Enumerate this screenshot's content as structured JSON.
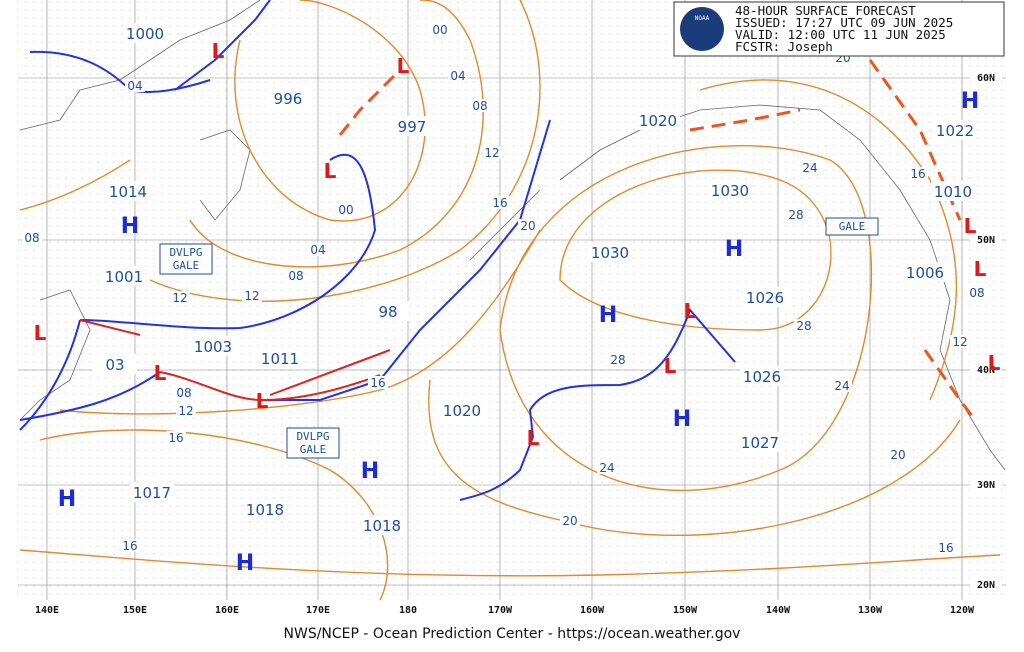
{
  "header": {
    "logo": "NOAA",
    "lines": [
      "48-HOUR SURFACE FORECAST",
      "ISSUED: 17:27 UTC 09 JUN 2025",
      "VALID:  12:00 UTC 11 JUN 2025",
      "FCSTR:  Joseph"
    ]
  },
  "symbols": {
    "high": "H",
    "low": "L"
  },
  "pressure_labels": [
    "1000",
    "996",
    "997",
    "1014",
    "1001",
    "1003",
    "1011",
    "03",
    "98",
    "1020",
    "1030",
    "1030",
    "1026",
    "1026",
    "1022",
    "1010",
    "1006",
    "1020",
    "1027",
    "1017",
    "1018",
    "1018"
  ],
  "isobar_labels": [
    "04",
    "00",
    "04",
    "08",
    "12",
    "16",
    "20",
    "00",
    "04",
    "08",
    "12",
    "12",
    "08",
    "12",
    "16",
    "16",
    "20",
    "24",
    "28",
    "28",
    "24",
    "20",
    "16",
    "24",
    "28",
    "20",
    "16",
    "08",
    "12",
    "08",
    "16"
  ],
  "gale_labels": [
    "DVLPG\nGALE",
    "DVLPG\nGALE",
    "GALE"
  ],
  "longitudes": [
    "140E",
    "150E",
    "160E",
    "170E",
    "180",
    "170W",
    "160W",
    "150W",
    "140W",
    "130W",
    "120W"
  ],
  "latitudes": [
    "60N",
    "50N",
    "40N",
    "30N",
    "20N"
  ],
  "footer": "NWS/NCEP - Ocean Prediction Center - https://ocean.weather.gov"
}
